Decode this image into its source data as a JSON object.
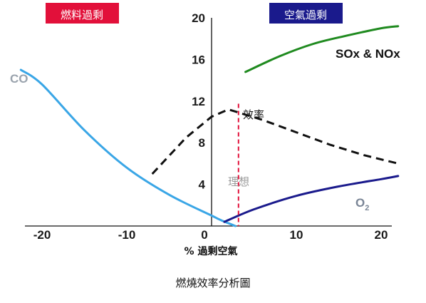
{
  "chart_data": {
    "type": "line",
    "title": "",
    "xlabel": "% 過剩空氣",
    "ylabel": "",
    "xlim": [
      -20,
      20
    ],
    "ylim": [
      0,
      20
    ],
    "x_ticks": [
      "-20",
      "-10",
      "0",
      "10",
      "20"
    ],
    "y_ticks": [
      "4",
      "8",
      "12",
      "16",
      "20"
    ],
    "regions": [
      {
        "label": "燃料過剩",
        "color": "#e2103a"
      },
      {
        "label": "空氣過剩",
        "color": "#1a1a8c"
      }
    ],
    "series": [
      {
        "name": "CO",
        "color": "#3aa6e6",
        "x": [
          -22.5,
          -20,
          -15,
          -10,
          -5,
          0,
          1,
          2.8
        ],
        "y": [
          15,
          13.6,
          9.2,
          5.6,
          3.0,
          1.0,
          0.6,
          0
        ]
      },
      {
        "name": "SOx & NOx",
        "color": "#1f8a1f",
        "x": [
          4,
          8,
          12,
          16,
          20,
          22
        ],
        "y": [
          14.8,
          16.3,
          17.5,
          18.3,
          19.0,
          19.2
        ]
      },
      {
        "name": "效率",
        "color": "#111111",
        "x": [
          -7,
          -3,
          0,
          2,
          6,
          10,
          14,
          18,
          22
        ],
        "y": [
          5.0,
          8.5,
          10.5,
          11.2,
          10.2,
          9.0,
          7.8,
          6.8,
          6.0
        ]
      },
      {
        "name": "O",
        "name_subscript": "2",
        "color": "#1a1a8c",
        "x": [
          1.5,
          5,
          10,
          15,
          20,
          22
        ],
        "y": [
          0.4,
          1.6,
          2.9,
          3.8,
          4.5,
          4.8
        ]
      }
    ],
    "markers": [
      {
        "label": "理想",
        "x": 2,
        "y_top": 11.2,
        "color": "#e2103a",
        "label_color": "#9a9a9a"
      }
    ]
  },
  "caption": "燃燒效率分析圖"
}
